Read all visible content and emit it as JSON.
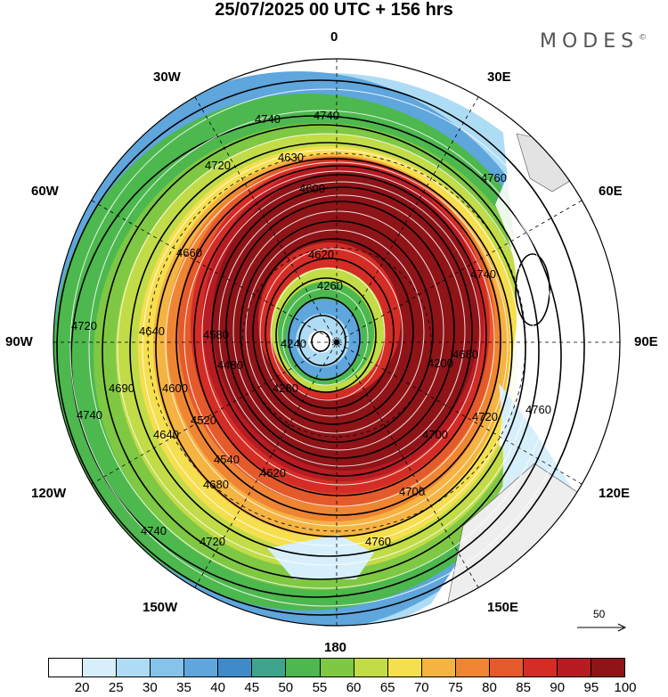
{
  "title": "25/07/2025  00 UTC  + 156 hrs",
  "brand": "MODES",
  "brand_mark": "©",
  "longitude_labels": {
    "n": "0",
    "e30": "30E",
    "e60": "60E",
    "e90": "90E",
    "e120": "120E",
    "e150": "150E",
    "s": "180",
    "w150": "150W",
    "w120": "120W",
    "w90": "90W",
    "w60": "60W",
    "w30": "30W"
  },
  "reference_vector": "50",
  "contour_labels": [
    "4740",
    "4740",
    "4720",
    "4630",
    "4600",
    "4760",
    "4660",
    "4620",
    "4260",
    "4740",
    "4720",
    "4640",
    "4580",
    "4480",
    "4240",
    "4280",
    "4200",
    "4680",
    "4760",
    "4740",
    "4690",
    "4720",
    "4600",
    "4520",
    "4640",
    "4540",
    "4620",
    "4700",
    "4680",
    "4700",
    "4720",
    "4740",
    "4760"
  ],
  "colorbar": {
    "ticks": [
      "20",
      "25",
      "30",
      "35",
      "40",
      "45",
      "50",
      "55",
      "60",
      "65",
      "70",
      "75",
      "80",
      "85",
      "90",
      "95",
      "100"
    ],
    "colors": [
      "#ffffff",
      "#d6effb",
      "#aedcf4",
      "#85c3ea",
      "#5ea6dc",
      "#3f8bc9",
      "#3ea48b",
      "#4db84e",
      "#7fc843",
      "#c2dc48",
      "#f6df4f",
      "#f5b342",
      "#ef8533",
      "#e55a2b",
      "#d42d26",
      "#b61c22",
      "#8e1418"
    ]
  },
  "icons": [
    "north-pole-marker-icon",
    "reference-arrow-icon"
  ]
}
